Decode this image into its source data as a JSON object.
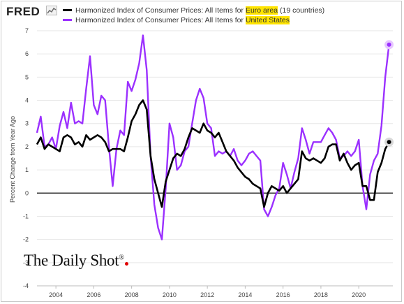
{
  "header": {
    "logo_text": "FRED",
    "logo_icon": "line-chart-icon"
  },
  "watermark": {
    "text": "The Daily Shot",
    "mark": "®"
  },
  "chart_data": {
    "type": "line",
    "title": "",
    "xlabel": "",
    "ylabel": "Percent Change from Year Ago",
    "ylim": [
      -4,
      7
    ],
    "xlim": [
      2003.0,
      2021.8
    ],
    "yticks": [
      "-4",
      "-3",
      "-2",
      "-1",
      "0",
      "1",
      "2",
      "3",
      "4",
      "5",
      "6",
      "7"
    ],
    "xticks": [
      "2004",
      "2006",
      "2008",
      "2010",
      "2012",
      "2014",
      "2016",
      "2018",
      "2020"
    ],
    "grid": "horizontal",
    "legend_position": "top-left",
    "series": [
      {
        "name": "Harmonized Index of Consumer Prices: All Items for Euro area (19 countries)",
        "legend_prefix": "Harmonized Index of Consumer Prices: All Items for ",
        "legend_highlight": "Euro area",
        "legend_suffix": " (19 countries)",
        "color": "#000000",
        "x": [
          2003.0,
          2003.2,
          2003.4,
          2003.6,
          2003.8,
          2004.0,
          2004.2,
          2004.4,
          2004.6,
          2004.8,
          2005.0,
          2005.2,
          2005.4,
          2005.6,
          2005.8,
          2006.0,
          2006.2,
          2006.4,
          2006.6,
          2006.8,
          2007.0,
          2007.2,
          2007.4,
          2007.6,
          2007.8,
          2008.0,
          2008.2,
          2008.4,
          2008.6,
          2008.8,
          2009.0,
          2009.2,
          2009.4,
          2009.6,
          2009.8,
          2010.0,
          2010.2,
          2010.4,
          2010.6,
          2010.8,
          2011.0,
          2011.2,
          2011.4,
          2011.6,
          2011.8,
          2012.0,
          2012.2,
          2012.4,
          2012.6,
          2012.8,
          2013.0,
          2013.2,
          2013.4,
          2013.6,
          2013.8,
          2014.0,
          2014.2,
          2014.4,
          2014.6,
          2014.8,
          2015.0,
          2015.2,
          2015.4,
          2015.6,
          2015.8,
          2016.0,
          2016.2,
          2016.4,
          2016.6,
          2016.8,
          2017.0,
          2017.2,
          2017.4,
          2017.6,
          2017.8,
          2018.0,
          2018.2,
          2018.4,
          2018.6,
          2018.8,
          2019.0,
          2019.2,
          2019.4,
          2019.6,
          2019.8,
          2020.0,
          2020.2,
          2020.4,
          2020.6,
          2020.8,
          2021.0,
          2021.2,
          2021.4,
          2021.6
        ],
        "values": [
          2.1,
          2.4,
          1.9,
          2.1,
          2.0,
          1.9,
          1.8,
          2.4,
          2.5,
          2.4,
          2.1,
          2.2,
          2.0,
          2.5,
          2.3,
          2.4,
          2.5,
          2.4,
          2.2,
          1.8,
          1.9,
          1.9,
          1.9,
          1.8,
          2.4,
          3.1,
          3.4,
          3.8,
          4.0,
          3.6,
          1.6,
          0.6,
          0.0,
          -0.6,
          0.5,
          1.0,
          1.5,
          1.7,
          1.6,
          1.9,
          2.4,
          2.8,
          2.7,
          2.6,
          3.0,
          2.7,
          2.6,
          2.4,
          2.6,
          2.2,
          1.8,
          1.6,
          1.4,
          1.1,
          0.9,
          0.7,
          0.6,
          0.4,
          0.3,
          0.2,
          -0.6,
          0.0,
          0.3,
          0.2,
          0.1,
          0.3,
          0.0,
          0.2,
          0.4,
          0.6,
          1.8,
          1.5,
          1.4,
          1.5,
          1.4,
          1.3,
          1.5,
          2.0,
          2.1,
          2.1,
          1.4,
          1.7,
          1.3,
          1.0,
          1.2,
          1.3,
          0.3,
          0.3,
          -0.3,
          -0.3,
          0.9,
          1.3,
          1.9,
          2.2
        ]
      },
      {
        "name": "Harmonized Index of Consumer Prices: All Items for United States",
        "legend_prefix": "Harmonized Index of Consumer Prices: All Items for ",
        "legend_highlight": "United States",
        "legend_suffix": "",
        "color": "#9b30ff",
        "x": [
          2003.0,
          2003.2,
          2003.4,
          2003.6,
          2003.8,
          2004.0,
          2004.2,
          2004.4,
          2004.6,
          2004.8,
          2005.0,
          2005.2,
          2005.4,
          2005.6,
          2005.8,
          2006.0,
          2006.2,
          2006.4,
          2006.6,
          2006.8,
          2007.0,
          2007.2,
          2007.4,
          2007.6,
          2007.8,
          2008.0,
          2008.2,
          2008.4,
          2008.6,
          2008.8,
          2009.0,
          2009.2,
          2009.4,
          2009.6,
          2009.8,
          2010.0,
          2010.2,
          2010.4,
          2010.6,
          2010.8,
          2011.0,
          2011.2,
          2011.4,
          2011.6,
          2011.8,
          2012.0,
          2012.2,
          2012.4,
          2012.6,
          2012.8,
          2013.0,
          2013.2,
          2013.4,
          2013.6,
          2013.8,
          2014.0,
          2014.2,
          2014.4,
          2014.6,
          2014.8,
          2015.0,
          2015.2,
          2015.4,
          2015.6,
          2015.8,
          2016.0,
          2016.2,
          2016.4,
          2016.6,
          2016.8,
          2017.0,
          2017.2,
          2017.4,
          2017.6,
          2017.8,
          2018.0,
          2018.2,
          2018.4,
          2018.6,
          2018.8,
          2019.0,
          2019.2,
          2019.4,
          2019.6,
          2019.8,
          2020.0,
          2020.2,
          2020.4,
          2020.6,
          2020.8,
          2021.0,
          2021.2,
          2021.4,
          2021.6
        ],
        "values": [
          2.6,
          3.3,
          2.0,
          2.1,
          2.4,
          1.9,
          2.9,
          3.5,
          2.8,
          3.9,
          3.0,
          3.1,
          3.0,
          4.5,
          5.9,
          3.8,
          3.4,
          4.2,
          4.0,
          2.0,
          0.3,
          1.9,
          2.7,
          2.5,
          4.8,
          4.4,
          4.9,
          5.6,
          6.8,
          5.3,
          1.6,
          -0.5,
          -1.5,
          -2.0,
          0.2,
          3.0,
          2.4,
          1.0,
          1.2,
          1.8,
          2.0,
          3.0,
          4.0,
          4.5,
          4.1,
          3.0,
          2.8,
          1.6,
          1.8,
          1.7,
          1.8,
          1.6,
          1.9,
          1.4,
          1.2,
          1.4,
          1.7,
          1.8,
          1.6,
          1.4,
          -0.7,
          -1.0,
          -0.6,
          -0.1,
          0.2,
          1.3,
          0.8,
          0.2,
          0.9,
          1.5,
          2.8,
          2.3,
          1.7,
          2.2,
          2.2,
          2.2,
          2.5,
          2.8,
          2.6,
          2.3,
          1.5,
          1.6,
          1.8,
          1.6,
          1.8,
          2.3,
          0.3,
          -0.7,
          0.8,
          1.4,
          1.7,
          2.9,
          5.0,
          6.4
        ]
      }
    ]
  }
}
